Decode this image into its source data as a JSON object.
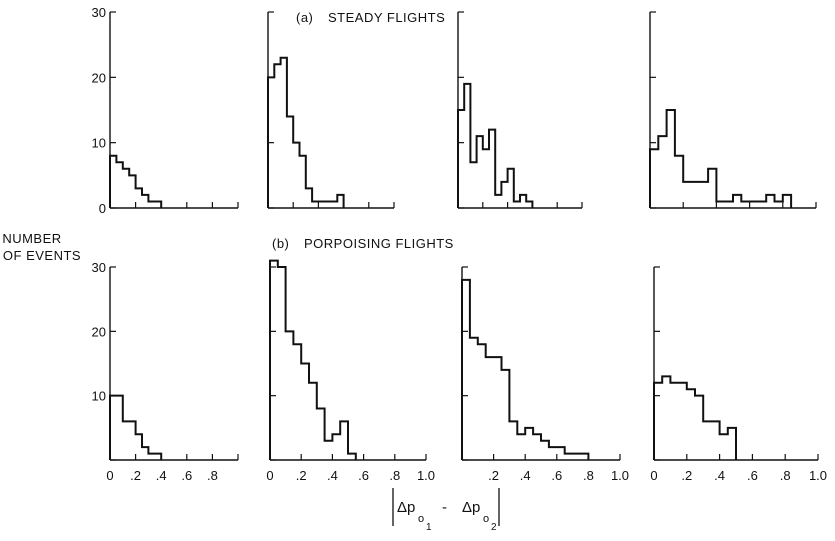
{
  "figure": {
    "ylabel_line1": "NUMBER",
    "ylabel_line2": "OF EVENTS",
    "row_labels": {
      "a_prefix": "(a)",
      "a_text": "STEADY FLIGHTS",
      "b_prefix": "(b)",
      "b_text": "PORPOISING FLIGHTS"
    },
    "xlabel": {
      "delta": "Δp",
      "sub_o": "o",
      "sub1": "1",
      "minus": "-",
      "sub2": "2"
    }
  },
  "chart_data": [
    {
      "id": "a1",
      "type": "histogram",
      "row": "(a) STEADY FLIGHTS",
      "xlim": [
        0,
        1.0
      ],
      "ylim": [
        0,
        30
      ],
      "x_ticks": [],
      "y_ticks": [
        "0",
        "10",
        "20",
        "30"
      ],
      "bin_width": 0.05,
      "values": [
        8,
        7,
        6,
        5,
        3,
        2,
        1,
        1
      ]
    },
    {
      "id": "a2",
      "type": "histogram",
      "row": "(a) STEADY FLIGHTS",
      "xlim": [
        0,
        1.0
      ],
      "ylim": [
        0,
        30
      ],
      "x_ticks": [],
      "y_ticks": [],
      "bin_width": 0.05,
      "values": [
        20,
        22,
        23,
        14,
        10,
        8,
        3,
        1,
        1,
        1,
        1,
        2
      ]
    },
    {
      "id": "a3",
      "type": "histogram",
      "row": "(a) STEADY FLIGHTS",
      "xlim": [
        0,
        1.0
      ],
      "ylim": [
        0,
        30
      ],
      "x_ticks": [],
      "y_ticks": [],
      "bin_width": 0.05,
      "values": [
        15,
        19,
        7,
        11,
        9,
        12,
        2,
        4,
        6,
        1,
        2,
        1
      ]
    },
    {
      "id": "a4",
      "type": "histogram",
      "row": "(a) STEADY FLIGHTS",
      "xlim": [
        0,
        1.0
      ],
      "ylim": [
        0,
        30
      ],
      "x_ticks": [],
      "y_ticks": [],
      "bin_width": 0.05,
      "values": [
        9,
        11,
        15,
        8,
        4,
        4,
        4,
        6,
        1,
        1,
        2,
        1,
        1,
        1,
        2,
        1,
        2
      ]
    },
    {
      "id": "b1",
      "type": "histogram",
      "row": "(b) PORPOISING FLIGHTS",
      "xlim": [
        0,
        1.0
      ],
      "ylim": [
        0,
        30
      ],
      "x_ticks": [
        "0",
        ".2",
        ".4",
        ".6",
        ".8"
      ],
      "y_ticks": [
        "10",
        "20",
        "30"
      ],
      "bin_width": 0.05,
      "values": [
        10,
        10,
        6,
        6,
        4,
        2,
        1,
        1
      ]
    },
    {
      "id": "b2",
      "type": "histogram",
      "row": "(b) PORPOISING FLIGHTS",
      "xlim": [
        0,
        1.0
      ],
      "ylim": [
        0,
        30
      ],
      "x_ticks": [
        "0",
        ".2",
        ".4",
        ".6",
        ".8",
        "1.0"
      ],
      "y_ticks": [],
      "bin_width": 0.05,
      "values": [
        31,
        30,
        20,
        18,
        15,
        12,
        8,
        3,
        4,
        6,
        1
      ]
    },
    {
      "id": "b3",
      "type": "histogram",
      "row": "(b) PORPOISING FLIGHTS",
      "xlim": [
        0,
        1.0
      ],
      "ylim": [
        0,
        30
      ],
      "x_ticks": [
        ".2",
        ".4",
        ".6",
        ".8",
        "1.0"
      ],
      "y_ticks": [],
      "bin_width": 0.05,
      "values": [
        28,
        19,
        18,
        16,
        16,
        14,
        6,
        4,
        5,
        4,
        3,
        2,
        2,
        1,
        1,
        1
      ]
    },
    {
      "id": "b4",
      "type": "histogram",
      "row": "(b) PORPOISING FLIGHTS",
      "xlim": [
        0,
        1.0
      ],
      "ylim": [
        0,
        30
      ],
      "x_ticks": [
        "0",
        ".2",
        ".4",
        ".6",
        ".8",
        "1.0"
      ],
      "y_ticks": [],
      "bin_width": 0.05,
      "values": [
        12,
        13,
        12,
        12,
        11,
        10,
        6,
        6,
        4,
        5
      ]
    }
  ]
}
